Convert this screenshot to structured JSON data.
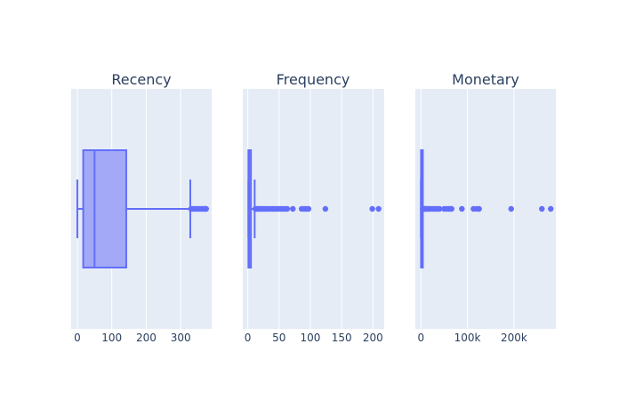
{
  "colors": {
    "plot_bg": "#e5ecf6",
    "grid": "#ffffff",
    "box_line": "#636efa",
    "box_fill": "#a3a9f6",
    "text": "#2a3f5f"
  },
  "chart_data": [
    {
      "type": "box",
      "title": "Recency",
      "xlabel": "",
      "ylabel": "",
      "grid": true,
      "legend": "none",
      "xlim": [
        -18,
        390
      ],
      "ticks": [
        0,
        100,
        200,
        300
      ],
      "tick_labels": [
        "0",
        "100",
        "200",
        "300"
      ],
      "box": {
        "lower_fence": 0,
        "q1": 17,
        "median": 50,
        "q3": 142,
        "upper_fence": 328
      },
      "outliers": [
        330,
        335,
        340,
        345,
        350,
        355,
        360,
        365,
        370,
        372,
        374
      ]
    },
    {
      "type": "box",
      "title": "Frequency",
      "xlabel": "",
      "ylabel": "",
      "grid": true,
      "legend": "none",
      "xlim": [
        -8,
        218
      ],
      "ticks": [
        0,
        50,
        100,
        150,
        200
      ],
      "tick_labels": [
        "0",
        "50",
        "100",
        "150",
        "200"
      ],
      "box": {
        "lower_fence": 1,
        "q1": 1,
        "median": 2,
        "q3": 5,
        "upper_fence": 11
      },
      "outliers": [
        12,
        14,
        16,
        18,
        20,
        22,
        25,
        28,
        30,
        33,
        36,
        40,
        43,
        46,
        50,
        53,
        56,
        60,
        63,
        72,
        86,
        90,
        93,
        97,
        124,
        199,
        209
      ]
    },
    {
      "type": "box",
      "title": "Monetary",
      "xlabel": "",
      "ylabel": "",
      "grid": true,
      "legend": "none",
      "xlim": [
        -12000,
        290000
      ],
      "ticks": [
        0,
        100000,
        200000
      ],
      "tick_labels": [
        "0",
        "100k",
        "200k"
      ],
      "box": {
        "lower_fence": 4,
        "q1": 300,
        "median": 650,
        "q3": 1600,
        "upper_fence": 3600
      },
      "outliers": [
        4000,
        6000,
        8000,
        10000,
        12000,
        15000,
        18000,
        22000,
        26000,
        30000,
        34000,
        37000,
        40000,
        50000,
        55000,
        60000,
        63000,
        66000,
        88000,
        113000,
        120000,
        125000,
        194000,
        260000,
        279000
      ]
    }
  ]
}
